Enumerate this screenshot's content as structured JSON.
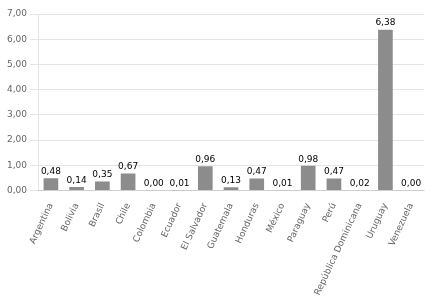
{
  "chart_data": {
    "type": "bar",
    "categories": [
      "Argentina",
      "Bolivia",
      "Brasil",
      "Chile",
      "Colombia",
      "Ecuador",
      "El Salvador",
      "Guatemala",
      "Honduras",
      "México",
      "Paraguay",
      "Perú",
      "República Dominicana",
      "Uruguay",
      "Venezuela"
    ],
    "values": [
      0.48,
      0.14,
      0.35,
      0.67,
      0.0,
      0.01,
      0.96,
      0.13,
      0.47,
      0.01,
      0.98,
      0.47,
      0.02,
      6.38,
      0.0
    ],
    "value_labels": [
      "0,48",
      "0,14",
      "0,35",
      "0,67",
      "0,00",
      "0,01",
      "0,96",
      "0,13",
      "0,47",
      "0,01",
      "0,98",
      "0,47",
      "0,02",
      "6,38",
      "0,00"
    ],
    "data_labels": true,
    "color": "#8c8c8c",
    "ylim": [
      0,
      7.0
    ],
    "yticks": [
      {
        "value": 0.0,
        "label": "0,00"
      },
      {
        "value": 1.0,
        "label": "1,00"
      },
      {
        "value": 2.0,
        "label": "2,00"
      },
      {
        "value": 3.0,
        "label": "3,00"
      },
      {
        "value": 4.0,
        "label": "4,00"
      },
      {
        "value": 5.0,
        "label": "5,00"
      },
      {
        "value": 6.0,
        "label": "6,00"
      },
      {
        "value": 7.0,
        "label": "7,00"
      }
    ],
    "grid": true
  }
}
